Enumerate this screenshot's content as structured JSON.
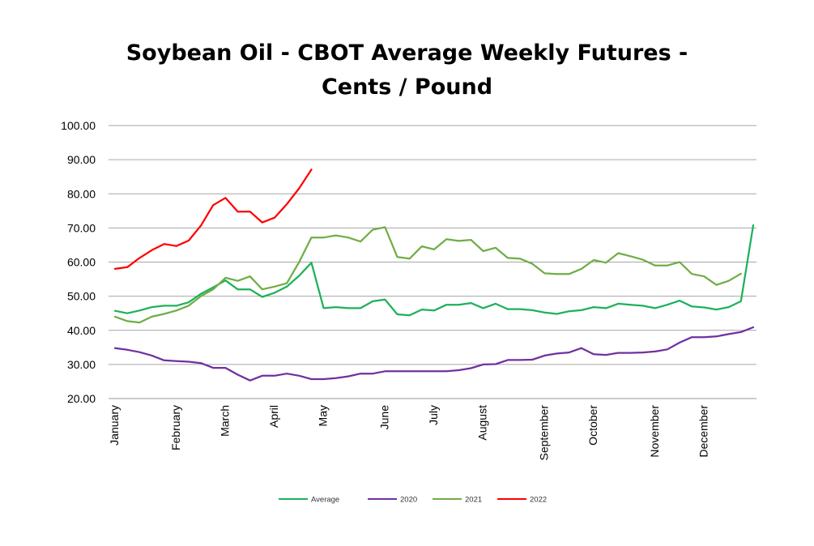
{
  "chart_data": {
    "type": "line",
    "title_line_1": "Soybean Oil - CBOT Average Weekly Futures -",
    "title_line_2": "Cents / Pound",
    "xlabel": "",
    "ylabel": "",
    "ylim": [
      20,
      100
    ],
    "y_ticks": [
      "20.00",
      "30.00",
      "40.00",
      "50.00",
      "60.00",
      "70.00",
      "80.00",
      "90.00",
      "100.00"
    ],
    "grid": "horizontal",
    "legend_position": "bottom",
    "x_weeks": 53,
    "month_labels": [
      {
        "label": "January",
        "week": 1
      },
      {
        "label": "February",
        "week": 6
      },
      {
        "label": "March",
        "week": 10
      },
      {
        "label": "April",
        "week": 14
      },
      {
        "label": "May",
        "week": 18
      },
      {
        "label": "June",
        "week": 23
      },
      {
        "label": "July",
        "week": 27
      },
      {
        "label": "August",
        "week": 31
      },
      {
        "label": "September",
        "week": 36
      },
      {
        "label": "October",
        "week": 40
      },
      {
        "label": "November",
        "week": 45
      },
      {
        "label": "December",
        "week": 49
      }
    ],
    "series": [
      {
        "name": "Average",
        "color": "#1db15a",
        "values": [
          45.7,
          45.0,
          45.8,
          46.8,
          47.2,
          47.2,
          48.2,
          50.7,
          52.6,
          54.6,
          52.0,
          52.0,
          49.8,
          51.0,
          52.8,
          56.0,
          59.8,
          46.5,
          46.8,
          46.5,
          46.5,
          48.5,
          49.0,
          44.7,
          44.4,
          46.1,
          45.8,
          47.5,
          47.5,
          48.0,
          46.5,
          47.8,
          46.2,
          46.2,
          45.9,
          45.2,
          44.8,
          45.6,
          45.9,
          46.8,
          46.5,
          47.8,
          47.5,
          47.2,
          46.5,
          47.5,
          48.7,
          47.0,
          46.7,
          46.1,
          46.8,
          48.5,
          70.8
        ]
      },
      {
        "name": "2020",
        "color": "#7030a0",
        "values": [
          34.8,
          34.3,
          33.6,
          32.6,
          31.2,
          31.0,
          30.8,
          30.4,
          29.0,
          29.0,
          27.0,
          25.3,
          26.7,
          26.7,
          27.3,
          26.7,
          25.7,
          25.7,
          26.0,
          26.5,
          27.3,
          27.3,
          28.0,
          28.0,
          28.0,
          28.0,
          28.0,
          28.0,
          28.3,
          28.9,
          30.0,
          30.1,
          31.3,
          31.3,
          31.4,
          32.6,
          33.2,
          33.5,
          34.8,
          33.0,
          32.8,
          33.4,
          33.4,
          33.5,
          33.8,
          34.4,
          36.4,
          38.0,
          38.0,
          38.2,
          38.9,
          39.5,
          40.9
        ]
      },
      {
        "name": "2021",
        "color": "#70ad47",
        "values": [
          44.0,
          42.7,
          42.3,
          44.0,
          44.8,
          45.8,
          47.2,
          50.0,
          52.0,
          55.4,
          54.5,
          55.8,
          52.0,
          52.8,
          53.8,
          60.0,
          67.2,
          67.2,
          67.8,
          67.2,
          66.0,
          69.5,
          70.2,
          61.5,
          61.0,
          64.6,
          63.7,
          66.7,
          66.2,
          66.5,
          63.2,
          64.2,
          61.2,
          61.0,
          59.5,
          56.7,
          56.5,
          56.5,
          58.0,
          60.6,
          59.8,
          62.6,
          61.7,
          60.7,
          59.0,
          59.0,
          60.0,
          56.5,
          55.8,
          53.3,
          54.5,
          56.6,
          null
        ]
      },
      {
        "name": "2022",
        "color": "#ff0000",
        "values": [
          58.0,
          58.5,
          61.2,
          63.5,
          65.3,
          64.7,
          66.3,
          70.7,
          76.7,
          78.8,
          74.8,
          74.8,
          71.6,
          73.0,
          77.0,
          81.6,
          87.1,
          null,
          null,
          null,
          null,
          null,
          null,
          null,
          null,
          null,
          null,
          null,
          null,
          null,
          null,
          null,
          null,
          null,
          null,
          null,
          null,
          null,
          null,
          null,
          null,
          null,
          null,
          null,
          null,
          null,
          null,
          null,
          null,
          null,
          null,
          null,
          null
        ]
      }
    ]
  }
}
